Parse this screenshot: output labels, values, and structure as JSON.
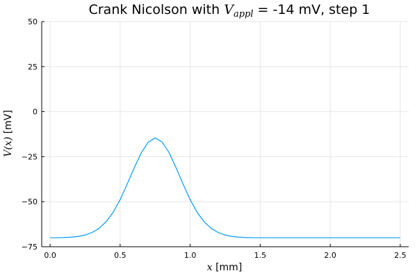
{
  "chart_data": {
    "type": "line",
    "title": {
      "prefix": "Crank Nicolson with ",
      "var": "V",
      "sub": "appl",
      "eq": " = ",
      "suffix": "-14 mV, step 1"
    },
    "xlabel": {
      "var": "x",
      "unit": " [mm]"
    },
    "ylabel": {
      "var": "V(x)",
      "unit": " [mV]"
    },
    "xlim": [
      -0.06,
      2.56
    ],
    "ylim": [
      -75,
      50
    ],
    "xticks": [
      0.0,
      0.5,
      1.0,
      1.5,
      2.0,
      2.5
    ],
    "xtick_labels": [
      "0.0",
      "0.5",
      "1.0",
      "1.5",
      "2.0",
      "2.5"
    ],
    "yticks": [
      -75,
      -50,
      -25,
      0,
      25,
      50
    ],
    "ytick_labels": [
      "−75",
      "−50",
      "−25",
      "0",
      "25",
      "50"
    ],
    "grid": true,
    "legend": "none",
    "series": [
      {
        "color": "#009af9",
        "x": [
          0.0,
          0.05,
          0.1,
          0.15,
          0.2,
          0.25,
          0.3,
          0.35,
          0.4,
          0.45,
          0.5,
          0.55,
          0.6,
          0.65,
          0.7,
          0.75,
          0.8,
          0.85,
          0.9,
          0.95,
          1.0,
          1.05,
          1.1,
          1.15,
          1.2,
          1.25,
          1.3,
          1.35,
          1.4,
          1.45,
          1.5,
          1.55,
          1.6,
          1.7,
          1.8,
          1.9,
          2.0,
          2.1,
          2.2,
          2.3,
          2.4,
          2.5
        ],
        "y": [
          -70.0,
          -70.0,
          -69.9,
          -69.7,
          -69.3,
          -68.5,
          -67.1,
          -64.8,
          -61.1,
          -55.9,
          -48.9,
          -40.3,
          -31.3,
          -23.0,
          -17.0,
          -14.6,
          -16.9,
          -22.8,
          -31.3,
          -40.3,
          -48.9,
          -55.9,
          -61.2,
          -64.8,
          -67.1,
          -68.5,
          -69.3,
          -69.7,
          -69.9,
          -70.0,
          -70.0,
          -70.0,
          -70.0,
          -70.0,
          -70.0,
          -70.0,
          -70.0,
          -70.0,
          -70.0,
          -70.0,
          -70.0,
          -70.0
        ]
      }
    ]
  }
}
